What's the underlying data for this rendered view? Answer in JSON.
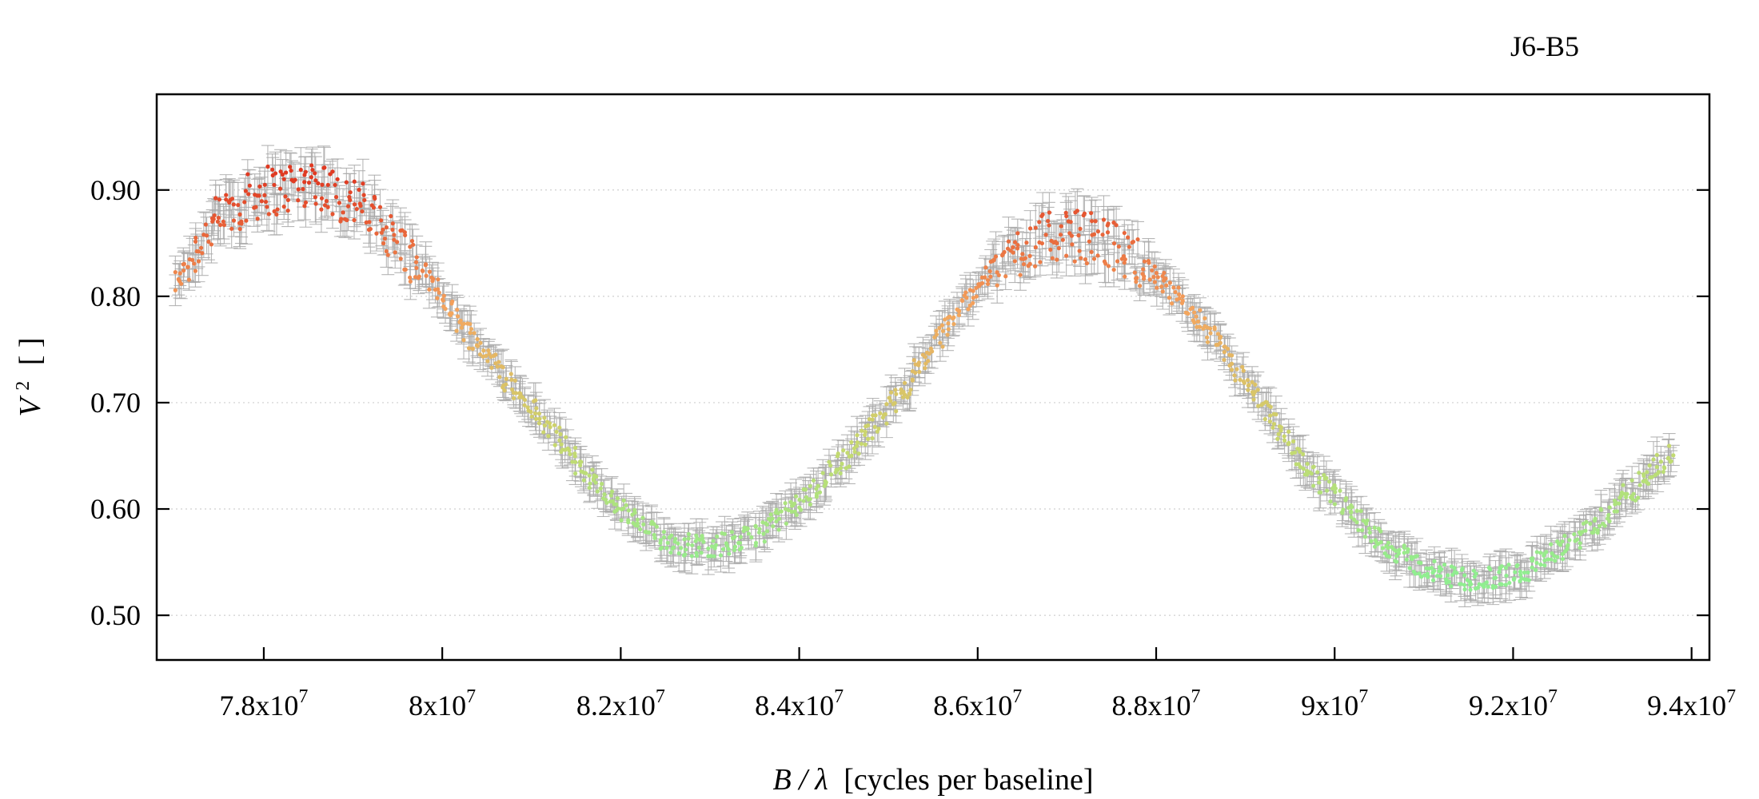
{
  "chart_data": {
    "type": "scatter",
    "title": "J6-B5",
    "xlabel_main": "B / λ",
    "xlabel_unit": "[cycles per baseline]",
    "ylabel_main": "V",
    "ylabel_sup": "2",
    "ylabel_unit": "[ ]",
    "xlim": [
      76800000,
      94200000
    ],
    "ylim": [
      0.458,
      0.99
    ],
    "grid": true,
    "x_ticks": [
      {
        "value": 78000000,
        "mantissa": "7.8x10",
        "exp": "7"
      },
      {
        "value": 80000000,
        "mantissa": "8x10",
        "exp": "7"
      },
      {
        "value": 82000000,
        "mantissa": "8.2x10",
        "exp": "7"
      },
      {
        "value": 84000000,
        "mantissa": "8.4x10",
        "exp": "7"
      },
      {
        "value": 86000000,
        "mantissa": "8.6x10",
        "exp": "7"
      },
      {
        "value": 88000000,
        "mantissa": "8.8x10",
        "exp": "7"
      },
      {
        "value": 90000000,
        "mantissa": "9x10",
        "exp": "7"
      },
      {
        "value": 92000000,
        "mantissa": "9.2x10",
        "exp": "7"
      },
      {
        "value": 94000000,
        "mantissa": "9.4x10",
        "exp": "7"
      }
    ],
    "y_ticks": [
      {
        "value": 0.5,
        "label": "0.50"
      },
      {
        "value": 0.6,
        "label": "0.60"
      },
      {
        "value": 0.7,
        "label": "0.70"
      },
      {
        "value": 0.8,
        "label": "0.80"
      },
      {
        "value": 0.9,
        "label": "0.90"
      }
    ],
    "series": [
      {
        "x": [
          77000000,
          77200000,
          77400000,
          77600000,
          77800000,
          78000000,
          78200000,
          78400000,
          78600000,
          78800000,
          79000000,
          79200000,
          79400000,
          79600000,
          79800000,
          80000000,
          80200000,
          80400000,
          80600000,
          80800000,
          81000000,
          81200000,
          81400000,
          81600000,
          81800000,
          82000000,
          82200000,
          82400000,
          82600000,
          82800000,
          83000000,
          83200000,
          83400000,
          83600000,
          83800000,
          84000000,
          84200000,
          84400000,
          84600000,
          84800000,
          85000000,
          85200000,
          85400000,
          85600000,
          85800000,
          86000000,
          86200000,
          86400000,
          86600000,
          86800000,
          87000000,
          87200000,
          87400000,
          87600000,
          87800000,
          88000000,
          88200000,
          88400000,
          88600000,
          88800000,
          89000000,
          89200000,
          89400000,
          89600000,
          89800000,
          90000000,
          90200000,
          90400000,
          90600000,
          90800000,
          91000000,
          91200000,
          91400000,
          91600000,
          91800000,
          92000000,
          92200000,
          92400000,
          92600000,
          92800000,
          93000000,
          93200000,
          93400000,
          93600000,
          93800000
        ],
        "y": [
          0.81,
          0.84,
          0.865,
          0.88,
          0.89,
          0.9,
          0.9,
          0.905,
          0.91,
          0.895,
          0.89,
          0.875,
          0.86,
          0.84,
          0.82,
          0.8,
          0.775,
          0.755,
          0.735,
          0.715,
          0.695,
          0.675,
          0.655,
          0.635,
          0.615,
          0.6,
          0.585,
          0.575,
          0.568,
          0.566,
          0.566,
          0.567,
          0.572,
          0.58,
          0.592,
          0.605,
          0.62,
          0.64,
          0.655,
          0.675,
          0.695,
          0.715,
          0.74,
          0.765,
          0.79,
          0.81,
          0.828,
          0.84,
          0.85,
          0.855,
          0.858,
          0.856,
          0.852,
          0.845,
          0.832,
          0.818,
          0.8,
          0.785,
          0.765,
          0.742,
          0.718,
          0.695,
          0.67,
          0.648,
          0.628,
          0.61,
          0.595,
          0.578,
          0.565,
          0.553,
          0.545,
          0.538,
          0.535,
          0.533,
          0.535,
          0.538,
          0.545,
          0.555,
          0.565,
          0.578,
          0.592,
          0.608,
          0.622,
          0.638,
          0.652
        ],
        "y_err": 0.012,
        "color_scale": [
          "#90ee90",
          "#c8d86e",
          "#f4a55e",
          "#e03a22"
        ]
      }
    ]
  }
}
